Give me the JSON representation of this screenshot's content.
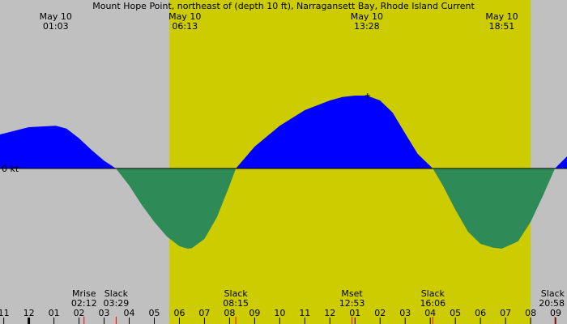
{
  "chart_data": {
    "type": "area",
    "title": "Mount Hope Point, northeast of (depth 10 ft), Narragansett Bay, Rhode Island Current",
    "ylabel": "0 kt",
    "colors": {
      "background": "#c0c0c0",
      "daylight": "#cccc00",
      "flood": "#0000ff",
      "ebb": "#2e8b57",
      "moon_marker": "#ff0000"
    },
    "x_axis": {
      "unit": "hour",
      "range": [
        -1.15,
        21.45
      ],
      "tick_labels": [
        "11",
        "12",
        "01",
        "02",
        "03",
        "04",
        "05",
        "06",
        "07",
        "08",
        "09",
        "10",
        "11",
        "12",
        "01",
        "02",
        "03",
        "04",
        "05",
        "06",
        "07",
        "08",
        "09"
      ],
      "tick_hours": [
        -1,
        0,
        1,
        2,
        3,
        4,
        5,
        6,
        7,
        8,
        9,
        10,
        11,
        12,
        13,
        14,
        15,
        16,
        17,
        18,
        19,
        20,
        21
      ],
      "midnight_hour": 0
    },
    "y_axis": {
      "unit": "knots",
      "range": [
        -1.55,
        1.55
      ],
      "zero_label": "0 kt"
    },
    "daylight": {
      "start": 5.6,
      "end": 20.0
    },
    "series": [
      {
        "x": [
          -1.15,
          0.0,
          1.07,
          1.5,
          2.0,
          2.5,
          3.0,
          3.47,
          4.0,
          4.5,
          5.0,
          5.5,
          6.0,
          6.33,
          6.5,
          7.0,
          7.5,
          8.0,
          8.25,
          9.0,
          10.0,
          11.0,
          12.0,
          12.5,
          13.0,
          13.47,
          14.0,
          14.5,
          15.0,
          15.5,
          16.1,
          16.5,
          17.0,
          17.5,
          18.0,
          18.5,
          18.85,
          19.5,
          20.0,
          20.5,
          20.97,
          21.45
        ],
        "y": [
          0.7,
          0.85,
          0.88,
          0.82,
          0.62,
          0.38,
          0.16,
          0.0,
          -0.35,
          -0.75,
          -1.1,
          -1.4,
          -1.6,
          -1.65,
          -1.64,
          -1.45,
          -1.0,
          -0.35,
          0.0,
          0.45,
          0.88,
          1.2,
          1.4,
          1.47,
          1.5,
          1.5,
          1.4,
          1.15,
          0.72,
          0.3,
          0.0,
          -0.35,
          -0.85,
          -1.3,
          -1.55,
          -1.63,
          -1.65,
          -1.5,
          -1.1,
          -0.55,
          0.0,
          0.25
        ]
      }
    ],
    "top_annotations": [
      {
        "hour": 1.07,
        "date": "May 10",
        "time": "01:03"
      },
      {
        "hour": 6.22,
        "date": "May 10",
        "time": "06:13"
      },
      {
        "hour": 13.47,
        "date": "May 10",
        "time": "13:28"
      },
      {
        "hour": 18.85,
        "date": "May 10",
        "time": "18:51"
      }
    ],
    "bottom_annotations": [
      {
        "hour": 2.2,
        "label": "Mrise",
        "time": "02:12",
        "marker": true
      },
      {
        "hour": 3.48,
        "label": "Slack",
        "time": "03:29",
        "marker": true
      },
      {
        "hour": 8.25,
        "label": "Slack",
        "time": "08:15",
        "marker": true
      },
      {
        "hour": 12.88,
        "label": "Mset",
        "time": "12:53",
        "marker": true
      },
      {
        "hour": 16.1,
        "label": "Slack",
        "time": "16:06",
        "marker": true
      },
      {
        "hour": 20.97,
        "label": "Slack",
        "time": "20:58",
        "marker": true
      }
    ],
    "peak_marker_hour": 13.5,
    "grid": false,
    "legend": "none"
  }
}
